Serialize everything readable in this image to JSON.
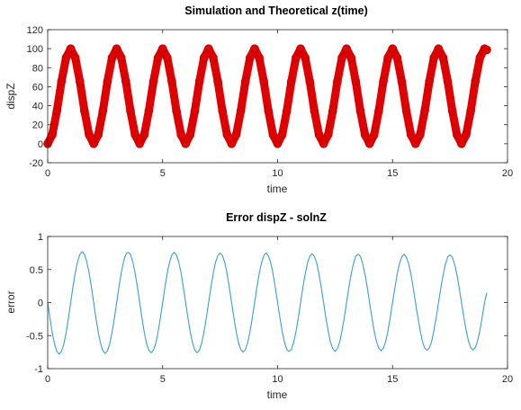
{
  "chart_data": [
    {
      "type": "scatter",
      "title": "Simulation and Theoretical z(time)",
      "xlabel": "time",
      "ylabel": "dispZ",
      "xlim": [
        0,
        20
      ],
      "ylim": [
        -20,
        120
      ],
      "xticks": [
        0,
        5,
        10,
        15,
        20
      ],
      "yticks": [
        -20,
        0,
        20,
        40,
        60,
        80,
        100,
        120
      ],
      "grid": false,
      "legend": "none",
      "series": [
        {
          "color": "#e00000",
          "marker": "o",
          "description": "displacement curve drawn with large red circle markers",
          "x": [
            0.0,
            0.2,
            0.4,
            0.6,
            0.8,
            1.0,
            1.2,
            1.4,
            1.6,
            1.8,
            2.0,
            2.2,
            2.4,
            2.6,
            2.8,
            3.0,
            3.2,
            3.4,
            3.6,
            3.8,
            4.0,
            4.2,
            4.4,
            4.6,
            4.8,
            5.0,
            5.2,
            5.4,
            5.6,
            5.8,
            6.0,
            6.2,
            6.4,
            6.6,
            6.8,
            7.0,
            7.2,
            7.4,
            7.6,
            7.8,
            8.0,
            8.2,
            8.4,
            8.6,
            8.8,
            9.0,
            9.2,
            9.4,
            9.6,
            9.8,
            10.0,
            10.2,
            10.4,
            10.6,
            10.8,
            11.0,
            11.2,
            11.4,
            11.6,
            11.8,
            12.0,
            12.2,
            12.4,
            12.6,
            12.8,
            13.0,
            13.2,
            13.4,
            13.6,
            13.8,
            14.0,
            14.2,
            14.4,
            14.6,
            14.8,
            15.0,
            15.2,
            15.4,
            15.6,
            15.8,
            16.0,
            16.2,
            16.4,
            16.6,
            16.8,
            17.0,
            17.2,
            17.4,
            17.6,
            17.8,
            18.0,
            18.2,
            18.4,
            18.6,
            18.8,
            19.0,
            19.1
          ],
          "y": [
            0,
            9.5,
            34.5,
            65.5,
            90.5,
            100,
            90.5,
            65.5,
            34.5,
            9.5,
            0,
            9.5,
            34.5,
            65.5,
            90.5,
            100,
            90.5,
            65.5,
            34.5,
            9.5,
            0,
            9.5,
            34.5,
            65.5,
            90.5,
            100,
            90.5,
            65.5,
            34.5,
            9.5,
            0,
            9.5,
            34.5,
            65.5,
            90.5,
            100,
            90.5,
            65.5,
            34.5,
            9.5,
            0,
            9.5,
            34.5,
            65.5,
            90.5,
            100,
            90.5,
            65.5,
            34.5,
            9.5,
            0,
            9.5,
            34.5,
            65.5,
            90.5,
            100,
            90.5,
            65.5,
            34.5,
            9.5,
            0,
            9.5,
            34.5,
            65.5,
            90.5,
            100,
            90.5,
            65.5,
            34.5,
            9.5,
            0,
            9.5,
            34.5,
            65.5,
            90.5,
            100,
            90.5,
            65.5,
            34.5,
            9.5,
            0,
            9.5,
            34.5,
            65.5,
            90.5,
            100,
            90.5,
            65.5,
            34.5,
            9.5,
            0,
            9.5,
            34.5,
            65.5,
            90.5,
            100,
            98.8
          ]
        }
      ]
    },
    {
      "type": "line",
      "title": "Error dispZ - solnZ",
      "xlabel": "time",
      "ylabel": "error",
      "xlim": [
        0,
        20
      ],
      "ylim": [
        -1,
        1
      ],
      "xticks": [
        0,
        5,
        10,
        15,
        20
      ],
      "yticks": [
        -1,
        -0.5,
        0,
        0.5,
        1
      ],
      "grid": false,
      "legend": "none",
      "series": [
        {
          "color": "#3a9fd0",
          "x": [
            0.0,
            0.1,
            0.2,
            0.3,
            0.4,
            0.5,
            0.6,
            0.7,
            0.8,
            0.9,
            1.0,
            1.1,
            1.2,
            1.3,
            1.4,
            1.5,
            1.6,
            1.7,
            1.8,
            1.9,
            2.0,
            2.1,
            2.2,
            2.3,
            2.4,
            2.5,
            2.6,
            2.7,
            2.8,
            2.9,
            3.0,
            3.1,
            3.2,
            3.3,
            3.4,
            3.5,
            3.6,
            3.7,
            3.8,
            3.9,
            4.0,
            4.1,
            4.2,
            4.3,
            4.4,
            4.5,
            4.6,
            4.7,
            4.8,
            4.9,
            5.0,
            5.1,
            5.2,
            5.3,
            5.4,
            5.5,
            5.6,
            5.7,
            5.8,
            5.9,
            6.0,
            6.1,
            6.2,
            6.3,
            6.4,
            6.5,
            6.6,
            6.7,
            6.8,
            6.9,
            7.0,
            7.1,
            7.2,
            7.3,
            7.4,
            7.5,
            7.6,
            7.7,
            7.8,
            7.9,
            8.0,
            8.1,
            8.2,
            8.3,
            8.4,
            8.5,
            8.6,
            8.7,
            8.8,
            8.9,
            9.0,
            9.1,
            9.2,
            9.3,
            9.4,
            9.5,
            9.6,
            9.7,
            9.8,
            9.9,
            10.0,
            10.1,
            10.2,
            10.3,
            10.4,
            10.5,
            10.6,
            10.7,
            10.8,
            10.9,
            11.0,
            11.1,
            11.2,
            11.3,
            11.4,
            11.5,
            11.6,
            11.7,
            11.8,
            11.9,
            12.0,
            12.1,
            12.2,
            12.3,
            12.4,
            12.5,
            12.6,
            12.7,
            12.8,
            12.9,
            13.0,
            13.1,
            13.2,
            13.3,
            13.4,
            13.5,
            13.6,
            13.7,
            13.8,
            13.9,
            14.0,
            14.1,
            14.2,
            14.3,
            14.4,
            14.5,
            14.6,
            14.7,
            14.8,
            14.9,
            15.0,
            15.1,
            15.2,
            15.3,
            15.4,
            15.5,
            15.6,
            15.7,
            15.8,
            15.9,
            16.0,
            16.1,
            16.2,
            16.3,
            16.4,
            16.5,
            16.6,
            16.7,
            16.8,
            16.9,
            17.0,
            17.1,
            17.2,
            17.3,
            17.4,
            17.5,
            17.6,
            17.7,
            17.8,
            17.9,
            18.0,
            18.1,
            18.2,
            18.3,
            18.4,
            18.5,
            18.6,
            18.7,
            18.8,
            18.9,
            19.0,
            19.1
          ],
          "y": [
            0,
            -0.24,
            -0.46,
            -0.63,
            -0.74,
            -0.78,
            -0.74,
            -0.63,
            -0.46,
            -0.24,
            0,
            0.24,
            0.45,
            0.62,
            0.73,
            0.77,
            0.73,
            0.62,
            0.45,
            0.24,
            0,
            -0.24,
            -0.45,
            -0.62,
            -0.73,
            -0.77,
            -0.73,
            -0.62,
            -0.45,
            -0.24,
            0,
            0.24,
            0.45,
            0.62,
            0.73,
            0.76,
            0.73,
            0.62,
            0.45,
            0.24,
            0,
            -0.23,
            -0.45,
            -0.62,
            -0.72,
            -0.76,
            -0.72,
            -0.62,
            -0.45,
            -0.23,
            0,
            0.23,
            0.45,
            0.61,
            0.72,
            0.76,
            0.72,
            0.61,
            0.45,
            0.23,
            0,
            -0.23,
            -0.44,
            -0.61,
            -0.72,
            -0.76,
            -0.72,
            -0.61,
            -0.44,
            -0.23,
            0,
            0.23,
            0.44,
            0.61,
            0.71,
            0.75,
            0.71,
            0.61,
            0.44,
            0.23,
            0,
            -0.23,
            -0.44,
            -0.61,
            -0.71,
            -0.75,
            -0.71,
            -0.61,
            -0.44,
            -0.23,
            0,
            0.23,
            0.44,
            0.6,
            0.71,
            0.75,
            0.71,
            0.6,
            0.44,
            0.23,
            0,
            -0.23,
            -0.44,
            -0.6,
            -0.71,
            -0.74,
            -0.71,
            -0.6,
            -0.44,
            -0.23,
            0,
            0.23,
            0.43,
            0.6,
            0.7,
            0.74,
            0.7,
            0.6,
            0.43,
            0.23,
            0,
            -0.23,
            -0.43,
            -0.6,
            -0.7,
            -0.74,
            -0.7,
            -0.6,
            -0.43,
            -0.23,
            0,
            0.23,
            0.43,
            0.59,
            0.7,
            0.73,
            0.7,
            0.59,
            0.43,
            0.23,
            0,
            -0.22,
            -0.43,
            -0.59,
            -0.69,
            -0.73,
            -0.69,
            -0.59,
            -0.43,
            -0.22,
            0,
            0.22,
            0.43,
            0.59,
            0.69,
            0.73,
            0.69,
            0.59,
            0.43,
            0.22,
            0,
            -0.22,
            -0.42,
            -0.59,
            -0.69,
            -0.72,
            -0.69,
            -0.59,
            -0.42,
            -0.22,
            0,
            0.22,
            0.42,
            0.58,
            0.69,
            0.72,
            0.69,
            0.58,
            0.42,
            0.22,
            0,
            -0.22,
            -0.42,
            -0.58,
            -0.68,
            -0.72,
            -0.68,
            -0.58,
            -0.42,
            -0.22,
            0,
            0.15
          ]
        }
      ]
    }
  ]
}
